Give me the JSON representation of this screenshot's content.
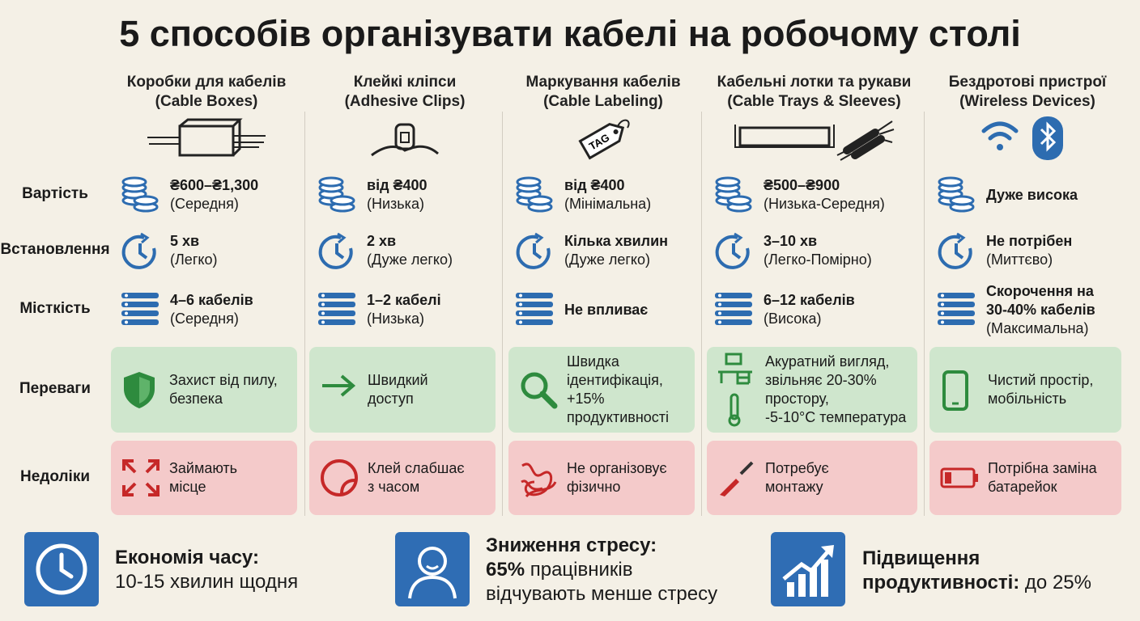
{
  "title": "5 способів організувати кабелі на робочому столі",
  "row_labels": [
    "Вартість",
    "Встановлення",
    "Місткість",
    "Переваги",
    "Недоліки"
  ],
  "columns": [
    {
      "name": [
        "Коробки для кабелів",
        "(Cable Boxes)"
      ],
      "cost": [
        "₴600–₴1,300",
        "(Середня)"
      ],
      "install": [
        "5 хв",
        "(Легко)"
      ],
      "capacity": [
        "4–6 кабелів",
        "(Середня)"
      ],
      "pros": [
        "Захист від пилу,",
        "безпека"
      ],
      "cons": [
        "Займають",
        "місце"
      ]
    },
    {
      "name": [
        "Клейкі кліпси",
        "(Adhesive Clips)"
      ],
      "cost": [
        "від ₴400",
        "(Низька)"
      ],
      "install": [
        "2 хв",
        "(Дуже легко)"
      ],
      "capacity": [
        "1–2 кабелі",
        "(Низька)"
      ],
      "pros": [
        "Швидкий",
        "доступ"
      ],
      "cons": [
        "Клей слабшає",
        "з часом"
      ]
    },
    {
      "name": [
        "Маркування кабелів",
        "(Cable Labeling)"
      ],
      "icon_text": "TAG",
      "cost": [
        "від ₴400",
        "(Мінімальна)"
      ],
      "install": [
        "Кілька хвилин",
        "(Дуже легко)"
      ],
      "capacity": [
        "Не впливає"
      ],
      "pros": [
        "Швидка",
        "ідентифікація,",
        "+15%",
        "продуктивності"
      ],
      "cons": [
        "Не організовує",
        "фізично"
      ]
    },
    {
      "name": [
        "Кабельні лотки та рукави",
        "(Cable Trays & Sleeves)"
      ],
      "cost": [
        "₴500–₴900",
        "(Низька-Середня)"
      ],
      "install": [
        "3–10 хв",
        "(Легко-Помірно)"
      ],
      "capacity": [
        "6–12 кабелів",
        "(Висока)"
      ],
      "pros": [
        "Акуратний вигляд,",
        "звільняє 20-30%",
        "простору,",
        "-5-10°C температура"
      ],
      "cons": [
        "Потребує",
        "монтажу"
      ]
    },
    {
      "name": [
        "Бездротові пристрої",
        "(Wireless Devices)"
      ],
      "cost": [
        "Дуже висока"
      ],
      "install": [
        "Не потрібен",
        "(Миттєво)"
      ],
      "capacity": [
        "Скорочення на",
        "30-40% кабелів",
        "(Максимальна)"
      ],
      "pros": [
        "Чистий простір,",
        "мобільність"
      ],
      "cons": [
        "Потрібна заміна",
        "батарейок"
      ]
    }
  ],
  "footer": {
    "time": {
      "title": "Економія часу:",
      "text": "10-15 хвилин щодня"
    },
    "stress": {
      "title": "Зниження стресу:",
      "highlight": "65%",
      "text": "працівників",
      "text2": "відчувають менше стресу"
    },
    "productivity": {
      "title": "Підвищення",
      "title2": "продуктивності:",
      "text": "до 25%"
    }
  }
}
